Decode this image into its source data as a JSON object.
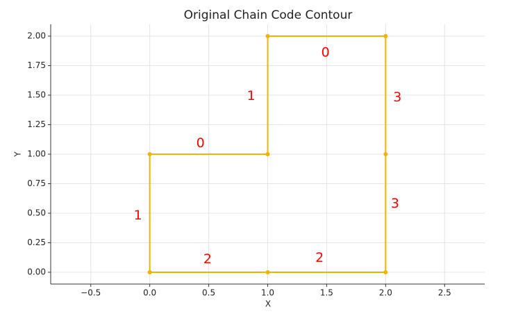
{
  "chart_data": {
    "type": "line",
    "title": "Original Chain Code Contour",
    "x_label": "X",
    "y_label": "Y",
    "x": [
      0,
      1,
      2,
      2,
      2,
      1,
      1,
      0,
      0
    ],
    "series": [
      {
        "color": "#f0b400",
        "values": [
          0,
          0,
          0,
          1,
          2,
          2,
          1,
          1,
          0
        ]
      }
    ],
    "annotations": [
      {
        "text": "2",
        "x": 0.49,
        "y": 0.11,
        "color": "#ff0000"
      },
      {
        "text": "2",
        "x": 1.44,
        "y": 0.12,
        "color": "#ff0000"
      },
      {
        "text": "3",
        "x": 2.08,
        "y": 0.58,
        "color": "#ff0000"
      },
      {
        "text": "3",
        "x": 2.1,
        "y": 1.48,
        "color": "#ff0000"
      },
      {
        "text": "0",
        "x": 1.49,
        "y": 1.86,
        "color": "#ff0000"
      },
      {
        "text": "1",
        "x": 0.86,
        "y": 1.49,
        "color": "#ff0000"
      },
      {
        "text": "0",
        "x": 0.43,
        "y": 1.09,
        "color": "#ff0000"
      },
      {
        "text": "1",
        "x": -0.1,
        "y": 0.48,
        "color": "#ff0000"
      }
    ],
    "xlim": [
      -0.84,
      2.84
    ],
    "ylim": [
      -0.1,
      2.1
    ],
    "xticks": [
      {
        "value": -0.5,
        "label": "−0.5"
      },
      {
        "value": 0,
        "label": "0.0"
      },
      {
        "value": 0.5,
        "label": "0.5"
      },
      {
        "value": 1,
        "label": "1.0"
      },
      {
        "value": 1.5,
        "label": "1.5"
      },
      {
        "value": 2,
        "label": "2.0"
      },
      {
        "value": 2.5,
        "label": "2.5"
      }
    ],
    "yticks": [
      {
        "value": 0,
        "label": "0.00"
      },
      {
        "value": 0.25,
        "label": "0.25"
      },
      {
        "value": 0.5,
        "label": "0.50"
      },
      {
        "value": 0.75,
        "label": "0.75"
      },
      {
        "value": 1,
        "label": "1.00"
      },
      {
        "value": 1.25,
        "label": "1.25"
      },
      {
        "value": 1.5,
        "label": "1.50"
      },
      {
        "value": 1.75,
        "label": "1.75"
      },
      {
        "value": 2,
        "label": "2.00"
      }
    ],
    "grid": true
  }
}
